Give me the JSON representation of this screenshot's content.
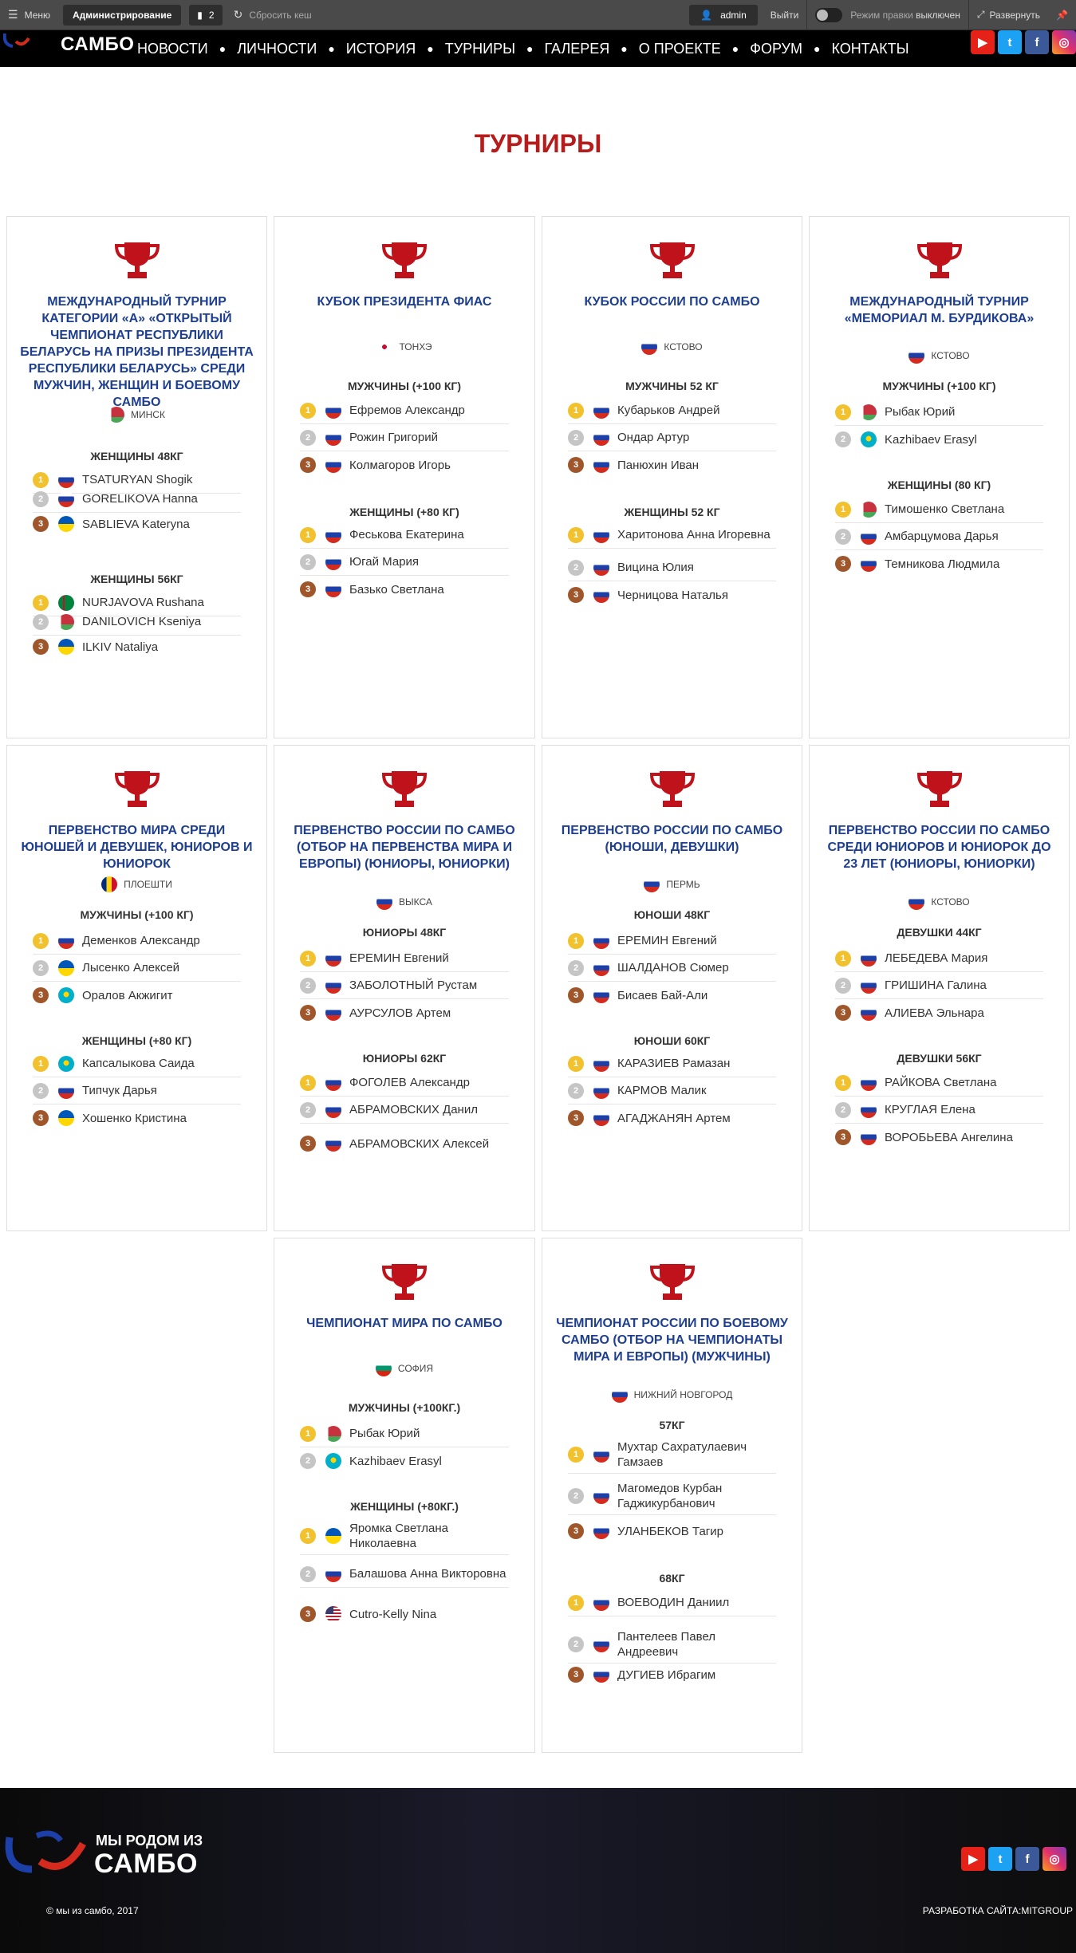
{
  "adminbar": {
    "menu": "Меню",
    "admin": "Администрирование",
    "count": "2",
    "reset_cache": "Сбросить кеш",
    "user": "admin",
    "logout": "Выйти",
    "edit_mode_label": "Режим правки",
    "edit_mode_state": "выключен",
    "expand": "Развернуть"
  },
  "header": {
    "logo": "САМБО",
    "nav": [
      "НОВОСТИ",
      "ЛИЧНОСТИ",
      "ИСТОРИЯ",
      "ТУРНИРЫ",
      "ГАЛЕРЕЯ",
      "О ПРОЕКТЕ",
      "ФОРУМ",
      "КОНТАКТЫ"
    ],
    "social": [
      "youtube-icon",
      "twitter-icon",
      "facebook-icon",
      "instagram-icon"
    ]
  },
  "page_title": "ТУРНИРЫ",
  "cards": [
    {
      "title": "МЕЖДУНАРОДНЫЙ ТУРНИР КАТЕГОРИИ «А» «ОТКРЫТЫЙ ЧЕМПИОНАТ РЕСПУБЛИКИ БЕЛАРУСЬ НА ПРИЗЫ ПРЕЗИДЕНТА РЕСПУБЛИКИ БЕЛАРУСЬ» СРЕДИ МУЖЧИН, ЖЕНЩИН И БОЕВОМУ САМБО",
      "location": "МИНСК",
      "sections": [
        {
          "category": "ЖЕНЩИНЫ 48КГ",
          "rows": [
            "TSATURYAN Shogik",
            "GORELIKOVA Hanna",
            "SABLIEVA Kateryna"
          ]
        },
        {
          "category": "ЖЕНЩИНЫ 56КГ",
          "rows": [
            "NURJAVOVA Rushana",
            "DANILOVICH Kseniya",
            "ILKIV Nataliya"
          ]
        }
      ]
    },
    {
      "title": "КУБОК ПРЕЗИДЕНТА ФИАС",
      "location": "ТОНХЭ",
      "sections": [
        {
          "category": "МУЖЧИНЫ (+100 КГ)",
          "rows": [
            "Ефремов Александр",
            "Рожин Григорий",
            "Колмагоров Игорь"
          ]
        },
        {
          "category": "ЖЕНЩИНЫ (+80 КГ)",
          "rows": [
            "Феськова Екатерина",
            "Югай Мария",
            "Базько Светлана"
          ]
        }
      ]
    },
    {
      "title": "КУБОК РОССИИ ПО САМБО",
      "location": "КСТОВО",
      "sections": [
        {
          "category": "МУЖЧИНЫ 52 КГ",
          "rows": [
            "Кубарьков Андрей",
            "Ондар Артур",
            "Панюхин Иван"
          ]
        },
        {
          "category": "ЖЕНЩИНЫ 52 КГ",
          "rows": [
            "Харитонова Анна Игоревна",
            "Вицина Юлия",
            "Черницова Наталья"
          ]
        }
      ]
    },
    {
      "title": "МЕЖДУНАРОДНЫЙ ТУРНИР «МЕМОРИАЛ М. БУРДИКОВА»",
      "location": "КСТОВО",
      "sections": [
        {
          "category": "МУЖЧИНЫ (+100 КГ)",
          "rows": [
            "Рыбак Юрий",
            "Kazhibaev Erasyl"
          ]
        },
        {
          "category": "ЖЕНЩИНЫ (80 КГ)",
          "rows": [
            "Тимошенко Светлана",
            "Амбарцумова Дарья",
            "Темникова Людмила"
          ]
        }
      ]
    },
    {
      "title": "ПЕРВЕНСТВО МИРА СРЕДИ ЮНОШЕЙ И ДЕВУШЕК, ЮНИОРОВ И ЮНИОРОК",
      "location": "ПЛОЕШТИ",
      "sections": [
        {
          "category": "МУЖЧИНЫ (+100 КГ)",
          "rows": [
            "Деменков Александр",
            "Лысенко Алексей",
            "Оралов Акжигит"
          ]
        },
        {
          "category": "ЖЕНЩИНЫ (+80 КГ)",
          "rows": [
            "Капсалыкова Саида",
            "Типчук Дарья",
            "Хошенко Кристина"
          ]
        }
      ]
    },
    {
      "title": "ПЕРВЕНСТВО РОССИИ ПО САМБО (ОТБОР НА ПЕРВЕНСТВА МИРА И ЕВРОПЫ) (ЮНИОРЫ, ЮНИОРКИ)",
      "location": "ВЫКСА",
      "sections": [
        {
          "category": "ЮНИОРЫ 48КГ",
          "rows": [
            "ЕРЕМИН Евгений",
            "ЗАБОЛОТНЫЙ Рустам",
            "АУРСУЛОВ Артем"
          ]
        },
        {
          "category": "ЮНИОРЫ 62КГ",
          "rows": [
            "ФОГОЛЕВ Александр",
            "АБРАМОВСКИХ Данил",
            "АБРАМОВСКИХ Алексей"
          ]
        }
      ]
    },
    {
      "title": "ПЕРВЕНСТВО РОССИИ ПО САМБО (ЮНОШИ, ДЕВУШКИ)",
      "location": "ПЕРМЬ",
      "sections": [
        {
          "category": "ЮНОШИ 48КГ",
          "rows": [
            "ЕРЕМИН Евгений",
            "ШАЛДАНОВ Сюмер",
            "Бисаев Бай-Али"
          ]
        },
        {
          "category": "ЮНОШИ 60КГ",
          "rows": [
            "КАРАЗИЕВ Рамазан",
            "КАРМОВ Малик",
            "АГАДЖАНЯН Артем"
          ]
        }
      ]
    },
    {
      "title": "ПЕРВЕНСТВО РОССИИ ПО САМБО СРЕДИ ЮНИОРОВ И ЮНИОРОК ДО 23 ЛЕТ (ЮНИОРЫ, ЮНИОРКИ)",
      "location": "КСТОВО",
      "sections": [
        {
          "category": "ДЕВУШКИ 44КГ",
          "rows": [
            "ЛЕБЕДЕВА Мария",
            "ГРИШИНА Галина",
            "АЛИЕВА Эльнара"
          ]
        },
        {
          "category": "ДЕВУШКИ 56КГ",
          "rows": [
            "РАЙКОВА Светлана",
            "КРУГЛАЯ Елена",
            "ВОРОБЬЕВА Ангелина"
          ]
        }
      ]
    },
    {
      "title": "ЧЕМПИОНАТ МИРА ПО САМБО",
      "location": "СОФИЯ",
      "sections": [
        {
          "category": "МУЖЧИНЫ (+100КГ.)",
          "rows": [
            "Рыбак Юрий",
            "Kazhibaev Erasyl"
          ]
        },
        {
          "category": "ЖЕНЩИНЫ (+80КГ.)",
          "rows": [
            "Яромка Светлана Николаевна",
            "Балашова Анна Викторовна",
            "Cutro-Kelly Nina"
          ]
        }
      ]
    },
    {
      "title": "ЧЕМПИОНАТ РОССИИ ПО БОЕВОМУ САМБО (ОТБОР НА ЧЕМПИОНАТЫ МИРА И ЕВРОПЫ) (МУЖЧИНЫ)",
      "location": "НИЖНИЙ НОВГОРОД",
      "sections": [
        {
          "category": "57КГ",
          "rows": [
            "Мухтар Сахратулаевич Гамзаев",
            "Магомедов Курбан Гаджикурбанович",
            "УЛАНБЕКОВ Тагир"
          ]
        },
        {
          "category": "68КГ",
          "rows": [
            "ВОЕВОДИН Даниил",
            "Пантелеев Павел Андреевич",
            "ДУГИЕВ Ибрагим"
          ]
        }
      ]
    }
  ],
  "footer": {
    "logo_line1": "МЫ РОДОМ ИЗ",
    "logo_line2": "САМБО",
    "copyright": "© мы из самбо, 2017",
    "developer": "РАЗРАБОТКА САЙТА:MITGROUP"
  }
}
